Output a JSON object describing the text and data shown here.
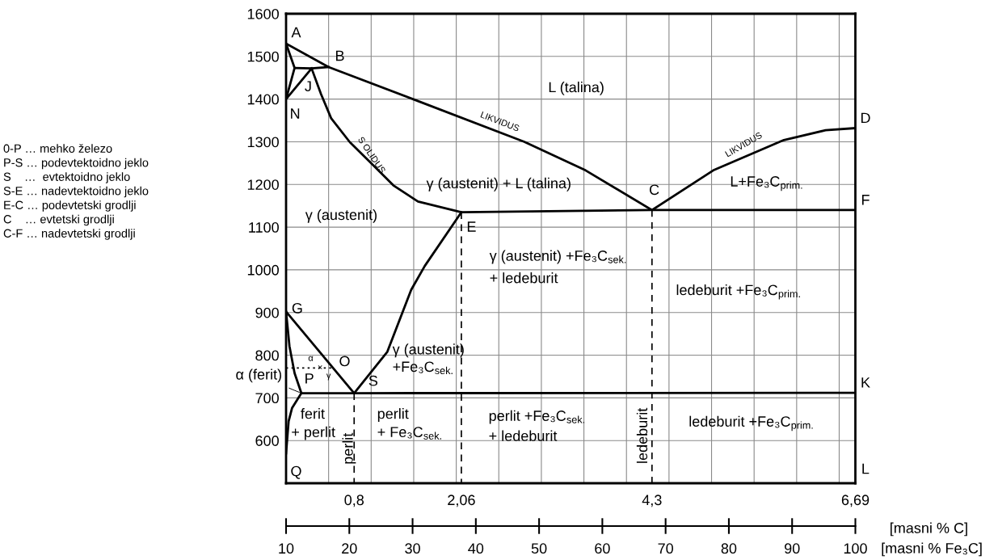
{
  "chart_data": {
    "type": "line",
    "xlim": [
      0,
      6.69
    ],
    "xticks": [
      {
        "value": 0.5,
        "label": null
      },
      {
        "value": 0.8,
        "label": "0,8"
      },
      {
        "value": 1.0,
        "label": null
      },
      {
        "value": 1.5,
        "label": null
      },
      {
        "value": 2.0,
        "label": null
      },
      {
        "value": 2.06,
        "label": "2,06"
      },
      {
        "value": 2.5,
        "label": null
      },
      {
        "value": 3.0,
        "label": null
      },
      {
        "value": 3.5,
        "label": null
      },
      {
        "value": 4.0,
        "label": null
      },
      {
        "value": 4.3,
        "label": "4,3"
      },
      {
        "value": 4.5,
        "label": null
      },
      {
        "value": 5.0,
        "label": null
      },
      {
        "value": 5.5,
        "label": null
      },
      {
        "value": 6.0,
        "label": null
      },
      {
        "value": 6.5,
        "label": null
      },
      {
        "value": 6.69,
        "label": "6,69"
      }
    ],
    "xlabel": "[masni % C]",
    "x2lim": [
      10,
      100
    ],
    "x2ticks": [
      10,
      20,
      30,
      40,
      50,
      60,
      70,
      80,
      90,
      100
    ],
    "x2label": "[masni % Fe₃C]",
    "ylim": [
      500,
      1600
    ],
    "yticks": [
      600,
      700,
      800,
      900,
      1000,
      1100,
      1200,
      1300,
      1400,
      1500,
      1600
    ],
    "grid": true,
    "series": [
      {
        "color": "#000000",
        "x": [
          0,
          0.5,
          1.49,
          2.8,
          3.52,
          4.3,
          5.02,
          5.85,
          6.34,
          6.69
        ],
        "values": [
          1530,
          1475,
          1400,
          1300,
          1233,
          1140,
          1233,
          1304,
          1327,
          1332
        ]
      },
      {
        "color": "#000000",
        "x": [
          0,
          0.1,
          0,
          0.3
        ],
        "values": [
          1530,
          1473,
          1400,
          1472
        ]
      },
      {
        "color": "#000000",
        "x": [
          0.1,
          0.3,
          0.5
        ],
        "values": [
          1473,
          1472,
          1475
        ]
      },
      {
        "color": "#000000",
        "x": [
          0.3,
          0.41,
          0.53,
          0.75,
          1.01,
          1.26,
          1.55,
          2.06,
          4.3,
          6.69
        ],
        "values": [
          1472,
          1412,
          1355,
          1299,
          1248,
          1198,
          1160,
          1135,
          1140,
          1140
        ]
      },
      {
        "color": "#000000",
        "x": [
          0,
          0.8,
          1.19,
          1.47,
          1.63,
          2.06
        ],
        "values": [
          902,
          711,
          808,
          953,
          1009,
          1135
        ]
      },
      {
        "color": "#000000",
        "x": [
          0,
          0.04,
          0.1,
          0.18,
          0.07,
          0.03,
          0
        ],
        "values": [
          902,
          821,
          758,
          711,
          676,
          645,
          570
        ]
      },
      {
        "color": "#000000",
        "x": [
          0.18,
          0.8,
          6.69
        ],
        "values": [
          711,
          711,
          712
        ]
      },
      {
        "color": "#000000",
        "line_style": "dotted",
        "x": [
          0,
          0.53
        ],
        "values": [
          770,
          770
        ]
      },
      {
        "color": "#000000",
        "line_style": "dashed",
        "x": [
          0.8,
          0.8
        ],
        "values": [
          711,
          500
        ]
      },
      {
        "color": "#000000",
        "line_style": "dashed",
        "x": [
          2.06,
          2.06
        ],
        "values": [
          1135,
          500
        ]
      },
      {
        "color": "#000000",
        "line_style": "dashed",
        "x": [
          4.3,
          4.3
        ],
        "values": [
          1140,
          500
        ]
      }
    ],
    "annotations": [
      {
        "text": "A",
        "x": 0,
        "y": 1530
      },
      {
        "text": "B",
        "x": 0.5,
        "y": 1475
      },
      {
        "text": "J",
        "x": 0.3,
        "y": 1472
      },
      {
        "text": "N",
        "x": 0,
        "y": 1400
      },
      {
        "text": "E",
        "x": 2.06,
        "y": 1135
      },
      {
        "text": "C",
        "x": 4.3,
        "y": 1140
      },
      {
        "text": "D",
        "x": 6.69,
        "y": 1332
      },
      {
        "text": "F",
        "x": 6.69,
        "y": 1140
      },
      {
        "text": "K",
        "x": 6.69,
        "y": 712
      },
      "L",
      {
        "text": "G",
        "x": 0,
        "y": 902
      },
      {
        "text": "O",
        "x": 0.53,
        "y": 770
      },
      {
        "text": "P",
        "x": 0.18,
        "y": 711
      },
      {
        "text": "S",
        "x": 0.8,
        "y": 711
      },
      {
        "text": "Q",
        "x": 0,
        "y": 570
      },
      "L (talina)",
      "γ (austenit) + L (talina)",
      "γ (austenit)",
      "L+Fe₃C$_{prim.}$",
      "γ (austenit) +Fe₃C$_{sek.}$",
      "+ ledeburit",
      "ledeburit +Fe₃C$_{prim.}$",
      "γ (austenit)",
      "+Fe₃C$_{sek.}$",
      "ferit",
      "+ perlit",
      "perlit",
      "perlit",
      "+ Fe₃C$_{sek.}$",
      "perlit +Fe₃C$_{sek.}$",
      "+ ledeburit",
      "ledeburit",
      "ledeburit +Fe₃C$_{prim.}$",
      "LIKVIDUS",
      "LIKVIDUS",
      "S OLIDUS",
      "α",
      "×",
      "γ",
      {
        "text": "α (ferit)",
        "x": 0.18,
        "y": 711
      },
      "0-P … mehko železo",
      "P-S … podevtektoidno jeklo",
      "S    …  evtektoidno jeklo",
      "S-E … nadevtektoidno jeklo",
      "E-C … podevtetski grodlji",
      "C    … evtetski grodlji",
      "C-F … nadevtetski grodlji"
    ]
  }
}
